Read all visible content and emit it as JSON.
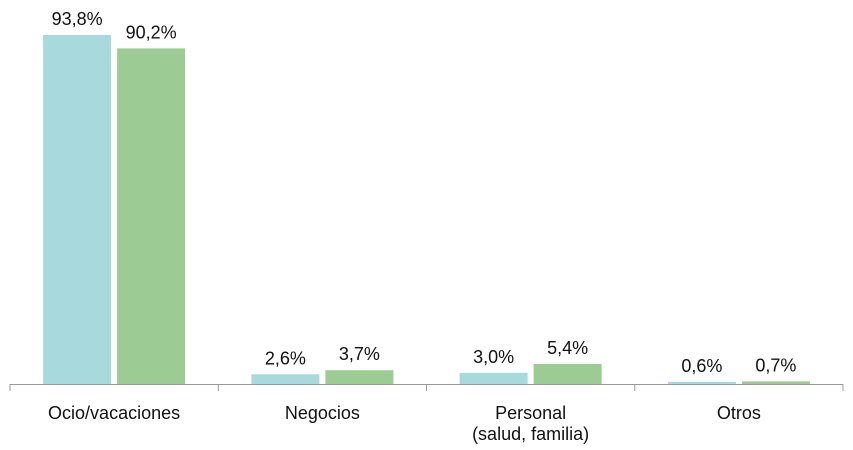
{
  "chart_data": {
    "type": "bar",
    "categories": [
      [
        "Ocio/vacaciones"
      ],
      [
        "Negocios"
      ],
      [
        "Personal",
        "(salud, familia)"
      ],
      [
        "Otros"
      ]
    ],
    "series": [
      {
        "values": [
          93.8,
          2.6,
          3.0,
          0.6
        ],
        "color": "#a8d9dc"
      },
      {
        "values": [
          90.2,
          3.7,
          5.4,
          0.7
        ],
        "color": "#9ccc94"
      }
    ],
    "value_labels": [
      [
        "93,8%",
        "2,6%",
        "3,0%",
        "0,6%"
      ],
      [
        "90,2%",
        "3,7%",
        "5,4%",
        "0,7%"
      ]
    ],
    "ylim": [
      0,
      100
    ],
    "grid": false,
    "legend": "none",
    "axis_color": "#9a9a9a"
  }
}
